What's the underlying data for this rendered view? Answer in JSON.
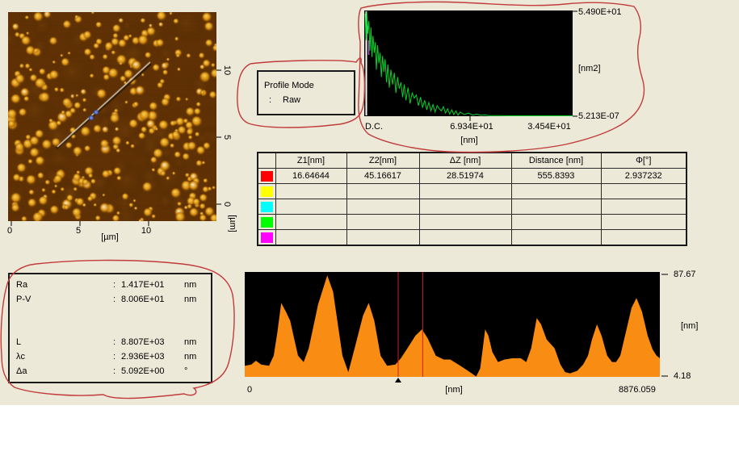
{
  "colors": {
    "page_bg": "#ece9d8",
    "annotation_red": "#c23b3b",
    "spectrum_line": "#00d42a",
    "profile_fill": "#f98c12",
    "plot_bg": "#000000",
    "cursor_red": "#d42020"
  },
  "afm": {
    "x_tick_labels": [
      "0",
      "5",
      "10"
    ],
    "x_unit": "[µm]",
    "y_tick_labels": [
      "10",
      "5",
      "0"
    ],
    "y_unit": "[µm]"
  },
  "profile_mode_box": {
    "title": "Profile Mode",
    "separator": ":",
    "value": "Raw"
  },
  "table": {
    "headers": [
      "Z1[nm]",
      "Z2[nm]",
      "ΔZ [nm]",
      "Distance [nm]",
      "Φ[°]"
    ],
    "rows": [
      {
        "color": "#ff0000",
        "values": [
          "16.64644",
          "45.16617",
          "28.51974",
          "555.8393",
          "2.937232"
        ]
      },
      {
        "color": "#ffff00",
        "values": [
          "",
          "",
          "",
          "",
          ""
        ]
      },
      {
        "color": "#00ffff",
        "values": [
          "",
          "",
          "",
          "",
          ""
        ]
      },
      {
        "color": "#00ff00",
        "values": [
          "",
          "",
          "",
          "",
          ""
        ]
      },
      {
        "color": "#ff00ff",
        "values": [
          "",
          "",
          "",
          "",
          ""
        ]
      }
    ]
  },
  "stats": {
    "separator": ":",
    "rows": [
      {
        "label": "Ra",
        "value": "1.417E+01",
        "unit": "nm"
      },
      {
        "label": "P-V",
        "value": "8.006E+01",
        "unit": "nm"
      },
      {
        "label": "L",
        "value": "8.807E+03",
        "unit": "nm"
      },
      {
        "label": "λc",
        "value": "2.936E+03",
        "unit": "nm"
      },
      {
        "label": "Δa",
        "value": "5.092E+00",
        "unit": "°"
      }
    ]
  },
  "chart_data": [
    {
      "id": "power_spectrum",
      "type": "line",
      "title": "",
      "ylabel": "[nm2]",
      "xlabel": "[nm]",
      "y_axis_labels": [
        "5.490E+01",
        "5.213E-07"
      ],
      "x_tick_labels": [
        "D.C.",
        "6.934E+01",
        "3.454E+01"
      ],
      "y_range": [
        5.213e-07,
        54.9
      ],
      "legend": "none",
      "grid": false,
      "points_norm": [
        [
          0.004,
          0.97
        ],
        [
          0.008,
          0.72
        ],
        [
          0.012,
          0.99
        ],
        [
          0.017,
          0.78
        ],
        [
          0.022,
          0.9
        ],
        [
          0.027,
          0.62
        ],
        [
          0.032,
          0.84
        ],
        [
          0.037,
          0.56
        ],
        [
          0.042,
          0.76
        ],
        [
          0.048,
          0.6
        ],
        [
          0.053,
          0.7
        ],
        [
          0.058,
          0.44
        ],
        [
          0.064,
          0.67
        ],
        [
          0.07,
          0.5
        ],
        [
          0.076,
          0.6
        ],
        [
          0.082,
          0.37
        ],
        [
          0.088,
          0.57
        ],
        [
          0.094,
          0.42
        ],
        [
          0.1,
          0.54
        ],
        [
          0.107,
          0.32
        ],
        [
          0.113,
          0.49
        ],
        [
          0.12,
          0.27
        ],
        [
          0.128,
          0.44
        ],
        [
          0.136,
          0.3
        ],
        [
          0.144,
          0.41
        ],
        [
          0.152,
          0.22
        ],
        [
          0.16,
          0.37
        ],
        [
          0.168,
          0.26
        ],
        [
          0.176,
          0.32
        ],
        [
          0.184,
          0.18
        ],
        [
          0.192,
          0.3
        ],
        [
          0.2,
          0.15
        ],
        [
          0.21,
          0.27
        ],
        [
          0.22,
          0.12
        ],
        [
          0.23,
          0.22
        ],
        [
          0.24,
          0.17
        ],
        [
          0.25,
          0.2
        ],
        [
          0.26,
          0.1
        ],
        [
          0.27,
          0.18
        ],
        [
          0.28,
          0.08
        ],
        [
          0.29,
          0.15
        ],
        [
          0.3,
          0.06
        ],
        [
          0.31,
          0.13
        ],
        [
          0.32,
          0.05
        ],
        [
          0.33,
          0.11
        ],
        [
          0.34,
          0.04
        ],
        [
          0.35,
          0.1
        ],
        [
          0.36,
          0.07
        ],
        [
          0.37,
          0.05
        ],
        [
          0.38,
          0.09
        ],
        [
          0.39,
          0.03
        ],
        [
          0.4,
          0.07
        ],
        [
          0.41,
          0.02
        ],
        [
          0.42,
          0.06
        ],
        [
          0.43,
          0.015
        ],
        [
          0.44,
          0.05
        ],
        [
          0.45,
          0.01
        ],
        [
          0.46,
          0.04
        ],
        [
          0.48,
          0.015
        ],
        [
          0.5,
          0.03
        ],
        [
          0.52,
          0.01
        ],
        [
          0.54,
          0.02
        ],
        [
          0.56,
          0.008
        ],
        [
          0.58,
          0.012
        ],
        [
          0.6,
          0.006
        ],
        [
          0.64,
          0.005
        ],
        [
          0.7,
          0.004
        ],
        [
          0.8,
          0.004
        ],
        [
          0.9,
          0.004
        ],
        [
          1.0,
          0.004
        ]
      ]
    },
    {
      "id": "line_profile",
      "type": "area",
      "title": "",
      "ylabel": "[nm]",
      "xlabel": "[nm]",
      "y_axis_labels": [
        "87.67",
        "4.18"
      ],
      "x_axis_labels": [
        "0",
        "8876.059"
      ],
      "x_range": [
        0,
        8876.059
      ],
      "y_range": [
        4.18,
        87.67
      ],
      "cursors_nm": [
        3281,
        3806
      ],
      "marker_nm": 3281,
      "legend": "none",
      "grid": false,
      "points": [
        [
          0,
          13
        ],
        [
          140,
          14
        ],
        [
          240,
          17
        ],
        [
          350,
          14
        ],
        [
          520,
          13
        ],
        [
          620,
          21
        ],
        [
          700,
          40
        ],
        [
          780,
          63
        ],
        [
          880,
          56
        ],
        [
          970,
          49
        ],
        [
          1140,
          21
        ],
        [
          1260,
          16
        ],
        [
          1370,
          27
        ],
        [
          1570,
          62
        ],
        [
          1765,
          85
        ],
        [
          1890,
          72
        ],
        [
          2090,
          21
        ],
        [
          2215,
          8
        ],
        [
          2350,
          27
        ],
        [
          2530,
          53
        ],
        [
          2650,
          63
        ],
        [
          2770,
          49
        ],
        [
          2905,
          21
        ],
        [
          3045,
          13
        ],
        [
          3220,
          14
        ],
        [
          3340,
          19
        ],
        [
          3480,
          27
        ],
        [
          3650,
          37
        ],
        [
          3790,
          42
        ],
        [
          3910,
          35
        ],
        [
          4085,
          21
        ],
        [
          4255,
          18
        ],
        [
          4395,
          18
        ],
        [
          4570,
          14
        ],
        [
          4775,
          9
        ],
        [
          4950,
          4.5
        ],
        [
          5035,
          11
        ],
        [
          5090,
          27
        ],
        [
          5140,
          42
        ],
        [
          5210,
          37
        ],
        [
          5295,
          24
        ],
        [
          5415,
          16
        ],
        [
          5555,
          18
        ],
        [
          5730,
          19
        ],
        [
          5900,
          19
        ],
        [
          6020,
          16
        ],
        [
          6125,
          27
        ],
        [
          6245,
          51
        ],
        [
          6335,
          46
        ],
        [
          6455,
          34
        ],
        [
          6625,
          27
        ],
        [
          6750,
          14
        ],
        [
          6850,
          8
        ],
        [
          6955,
          7
        ],
        [
          7110,
          9
        ],
        [
          7235,
          14
        ],
        [
          7340,
          21
        ],
        [
          7425,
          34
        ],
        [
          7530,
          46
        ],
        [
          7630,
          37
        ],
        [
          7750,
          21
        ],
        [
          7855,
          16
        ],
        [
          7940,
          16
        ],
        [
          8030,
          21
        ],
        [
          8150,
          40
        ],
        [
          8270,
          59
        ],
        [
          8375,
          67
        ],
        [
          8495,
          56
        ],
        [
          8615,
          37
        ],
        [
          8720,
          26
        ],
        [
          8805,
          21
        ],
        [
          8876,
          19
        ]
      ]
    }
  ]
}
